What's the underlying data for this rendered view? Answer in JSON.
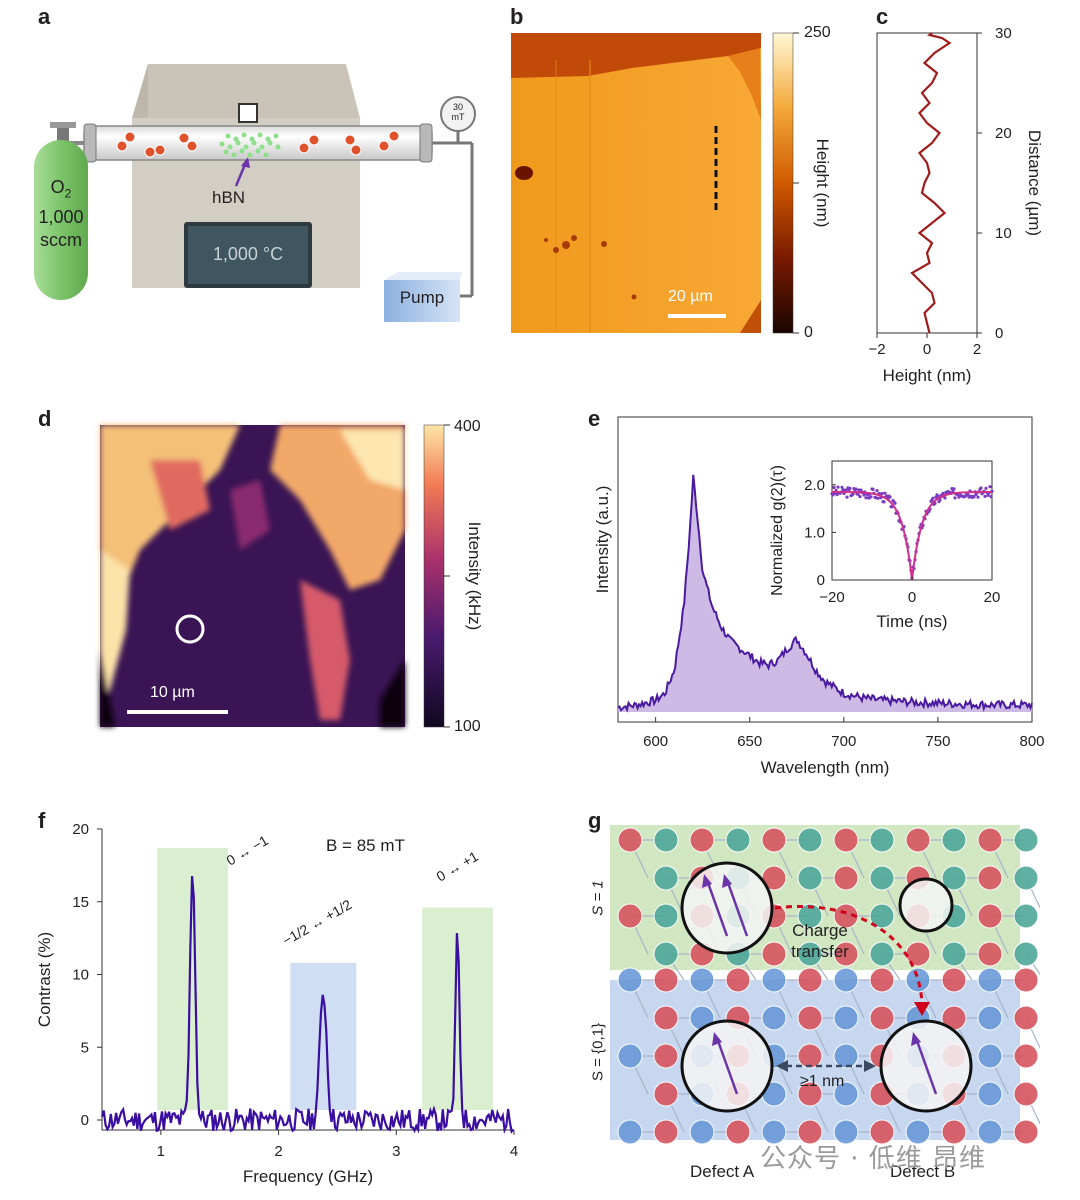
{
  "panels": {
    "a": "a",
    "b": "b",
    "c": "c",
    "d": "d",
    "e": "e",
    "f": "f",
    "g": "g"
  },
  "panel_a": {
    "cylinder_lines": [
      "O",
      "2",
      "1,000",
      "sccm"
    ],
    "gauge": [
      "30",
      "mT"
    ],
    "hbn_label": "hBN",
    "display": "1,000 °C",
    "pump": "Pump",
    "colors": {
      "cylinder": "#7cc46a",
      "furnace": "#cfcbc0",
      "display": "#3c4f5a",
      "pump": "#a9c6ea",
      "molecule": "#e0522c",
      "hbn": "#8fe08a"
    }
  },
  "panel_b": {
    "colorbar_max": "250",
    "colorbar_min": "0",
    "colorbar_label": "Height (nm)",
    "scalebar": "20 µm"
  },
  "panel_g": {
    "s1_label": "S = 1",
    "s01_label": "S = {0,1}",
    "charge_transfer_lines": [
      "Charge",
      "transfer"
    ],
    "distance_label": "≥1 nm",
    "defect_a": "Defect A",
    "defect_b": "Defect B",
    "colors": {
      "red_atom": "#d7555f",
      "teal_atom": "#4fa89a",
      "blue_atom": "#6a9ad8",
      "green_bg": "#c9e3b7",
      "blue_bg": "#bcd0ec",
      "arrow": "#6a34a8",
      "transfer": "#d0021b"
    }
  },
  "panel_d": {
    "colorbar_max": "400",
    "colorbar_min": "100",
    "colorbar_label": "Intensity (kHz)",
    "scalebar": "10 µm"
  },
  "watermark": "公众号 · 低维 昂维",
  "chart_data": [
    {
      "panel": "c",
      "type": "line",
      "xlabel": "Height (nm)",
      "ylabel": "Distance (µm)",
      "xlim": [
        -2,
        2
      ],
      "ylim": [
        0,
        30
      ],
      "xticks": [
        "−2",
        "0",
        "2"
      ],
      "yticks": [
        "0",
        "10",
        "20",
        "30"
      ],
      "color": "#a01c1c",
      "x": [
        0.1,
        0.0,
        -0.1,
        0.3,
        0.2,
        -0.2,
        -0.6,
        0.1,
        0.0,
        0.2,
        -0.3,
        0.2,
        0.7,
        0.3,
        -0.2,
        -0.1,
        0.1,
        0.0,
        -0.3,
        0.2,
        0.5,
        0.0,
        -0.3,
        0.1,
        -0.2,
        0.2,
        0.4,
        -0.1,
        0.3,
        0.9,
        0.6,
        0.1,
        0.2
      ],
      "y": [
        0,
        1,
        2,
        3,
        4,
        5,
        6,
        7,
        8,
        9,
        10,
        11,
        12,
        13,
        14,
        15,
        16,
        17,
        18,
        19,
        20,
        21,
        22,
        23,
        24,
        25,
        26,
        27,
        28,
        29,
        29.5,
        29.8,
        30
      ]
    },
    {
      "panel": "e",
      "type": "area",
      "xlabel": "Wavelength (nm)",
      "ylabel": "Intensity (a.u.)",
      "xlim": [
        580,
        800
      ],
      "xticks": [
        "600",
        "650",
        "700",
        "750",
        "800"
      ],
      "color": "#4a1aa0",
      "fill": "#c8b2e2",
      "x": [
        580,
        590,
        600,
        605,
        610,
        615,
        618,
        620,
        622,
        625,
        630,
        635,
        640,
        645,
        650,
        655,
        660,
        665,
        670,
        675,
        680,
        685,
        690,
        700,
        710,
        720,
        740,
        760,
        780,
        800
      ],
      "y": [
        0.02,
        0.03,
        0.05,
        0.08,
        0.18,
        0.45,
        0.75,
        1.0,
        0.85,
        0.6,
        0.45,
        0.36,
        0.3,
        0.27,
        0.24,
        0.21,
        0.2,
        0.22,
        0.27,
        0.31,
        0.25,
        0.18,
        0.13,
        0.08,
        0.06,
        0.05,
        0.04,
        0.035,
        0.03,
        0.03
      ],
      "inset": {
        "type": "scatter",
        "xlabel": "Time (ns)",
        "ylabel": "Normalized g(2)(τ)",
        "xlim": [
          -20,
          20
        ],
        "ylim": [
          0,
          2.5
        ],
        "xticks": [
          "−20",
          "0",
          "20"
        ],
        "yticks": [
          "0",
          "1.0",
          "2.0"
        ],
        "point_color": "#7a3cc0",
        "fit_color": "#d0308c",
        "fit": {
          "baseline": 1.85,
          "depth": 1.85,
          "tau": 2.5
        }
      }
    },
    {
      "panel": "f",
      "type": "line",
      "xlabel": "Frequency (GHz)",
      "ylabel": "Contrast (%)",
      "xlim": [
        0.5,
        4
      ],
      "ylim": [
        -1,
        20
      ],
      "xticks": [
        "1",
        "2",
        "3",
        "4"
      ],
      "yticks": [
        "0",
        "5",
        "10",
        "15",
        "20"
      ],
      "annotation": "B = 85 mT",
      "peaks": [
        {
          "x": 1.27,
          "y": 17.6,
          "width": 0.03,
          "label": "0 ↔ −1",
          "band": "green"
        },
        {
          "x": 2.38,
          "y": 9.0,
          "width": 0.04,
          "label": "−1/2 ↔ +1/2",
          "band": "blue"
        },
        {
          "x": 3.52,
          "y": 12.6,
          "width": 0.025,
          "label": "0 ↔ +1",
          "band": "green"
        }
      ],
      "color": "#3a0ea0",
      "band_colors": {
        "green": "#d3ecc8",
        "blue": "#c7d8f0"
      }
    }
  ]
}
